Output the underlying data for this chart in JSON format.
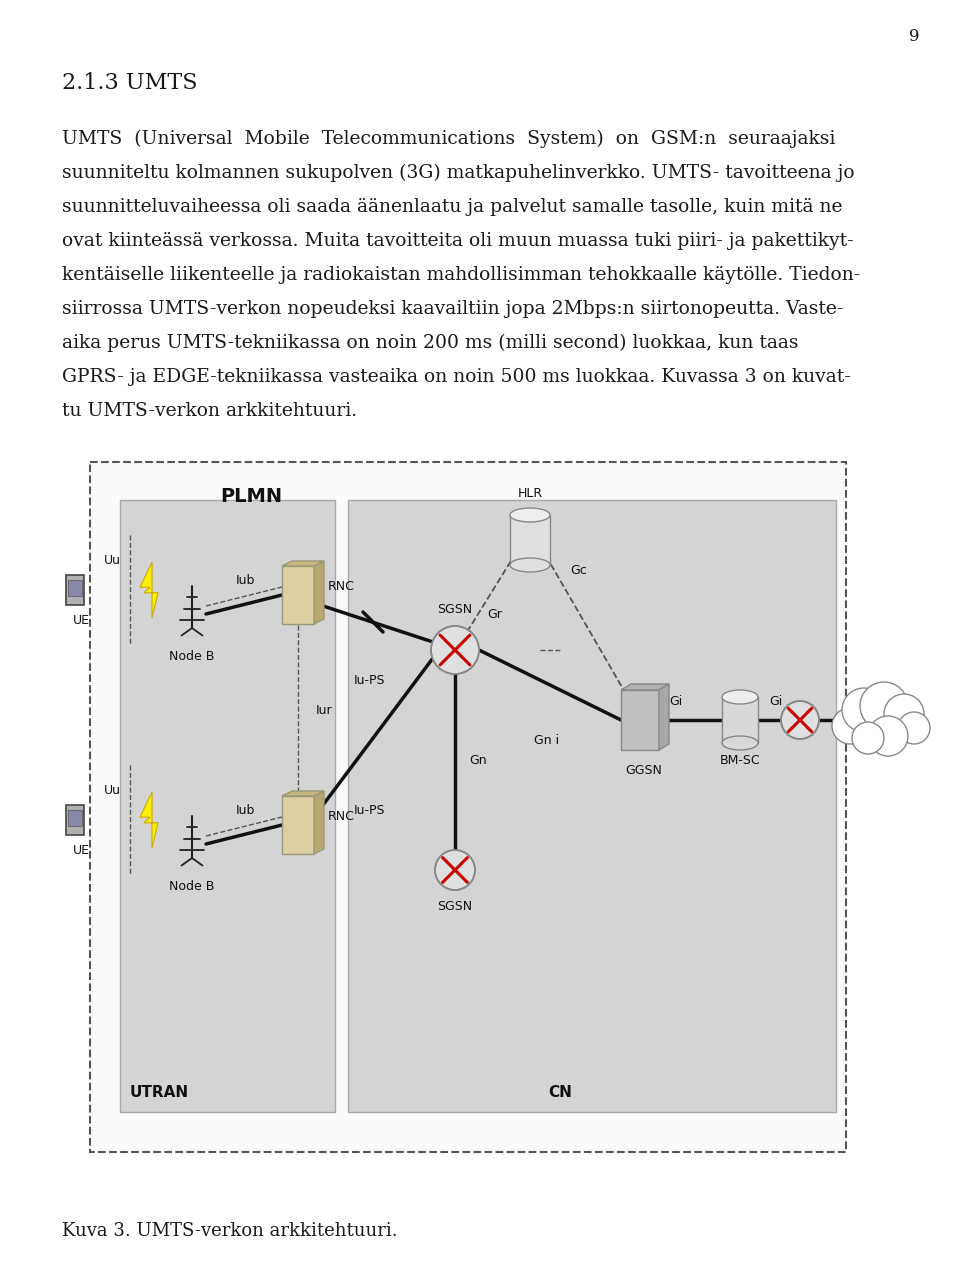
{
  "page_num": "9",
  "heading": "2.1.3 UMTS",
  "body_lines": [
    "UMTS  (Universal  Mobile  Telecommunications  System)  on  GSM:n  seuraajaksi",
    "suunniteltu kolmannen sukupolven (3G) matkapuhelinverkko. UMTS- tavoitteena jo",
    "suunnitteluvaiheessa oli saada äänenlaatu ja palvelut samalle tasolle, kuin mitä ne",
    "ovat kiinteässä verkossa. Muita tavoitteita oli muun muassa tuki piiri- ja pakettikyt-",
    "kentäiselle liikenteelle ja radiokaistan mahdollisimman tehokkaalle käytölle. Tiedon-",
    "siirrossa UMTS-verkon nopeudeksi kaavailtiin jopa 2Mbps:n siirtonopeutta. Vaste-",
    "aika perus UMTS-tekniikassa on noin 200 ms (milli second) luokkaa, kun taas",
    "GPRS- ja EDGE-tekniikassa vasteaika on noin 500 ms luokkaa. Kuvassa 3 on kuvat-",
    "tu UMTS-verkon arkkitehtuuri."
  ],
  "caption": "Kuva 3. UMTS-verkon arkkitehtuuri.",
  "bg_color": "#ffffff",
  "text_color": "#1a1a1a",
  "diagram_bg": "#f0f0f0",
  "gray_box": "#d4d4d4",
  "dashed_color": "#555555"
}
